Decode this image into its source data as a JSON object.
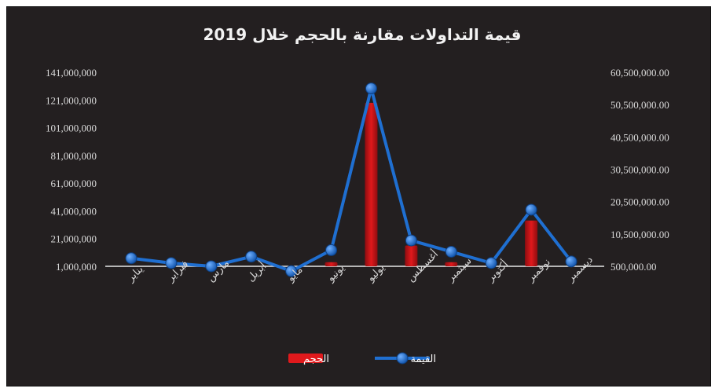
{
  "chart_data": {
    "type": "bar",
    "title": "قيمة التداولات مقارنة بالحجم خلال 2019",
    "categories": [
      "يناير",
      "فبراير",
      "مارس",
      "أبريل",
      "مايو",
      "يونيو",
      "يوليو",
      "أغسطس",
      "سبتمبر",
      "أكتوبر",
      "نوفمبر",
      "ديسمبر"
    ],
    "left_axis": {
      "min": 1000000,
      "max": 141000000,
      "ticks": [
        "141,000,000",
        "121,000,000",
        "101,000,000",
        "81,000,000",
        "61,000,000",
        "41,000,000",
        "21,000,000",
        "1,000,000"
      ]
    },
    "right_axis": {
      "min": 500000,
      "max": 60500000,
      "ticks": [
        "60,500,000.00",
        "50,500,000.00",
        "40,500,000.00",
        "30,500,000.00",
        "20,500,000.00",
        "10,500,000.00",
        "500,000.00"
      ]
    },
    "series": [
      {
        "name": "الحجم",
        "type": "bar",
        "axis": "left",
        "color": "#e0191c",
        "values": [
          0,
          0,
          0,
          0,
          0,
          3000000,
          118000000,
          15000000,
          3000000,
          0,
          33000000,
          0
        ]
      },
      {
        "name": "القيمة",
        "type": "line",
        "axis": "right",
        "color": "#1f6fd1",
        "values": [
          3000000,
          1500000,
          500000,
          3500000,
          -1000000,
          5500000,
          55500000,
          8500000,
          5000000,
          1500000,
          18000000,
          2000000
        ]
      }
    ],
    "legend": {
      "position": "bottom",
      "items": [
        "الحجم",
        "القيمة"
      ]
    },
    "grid": false
  }
}
